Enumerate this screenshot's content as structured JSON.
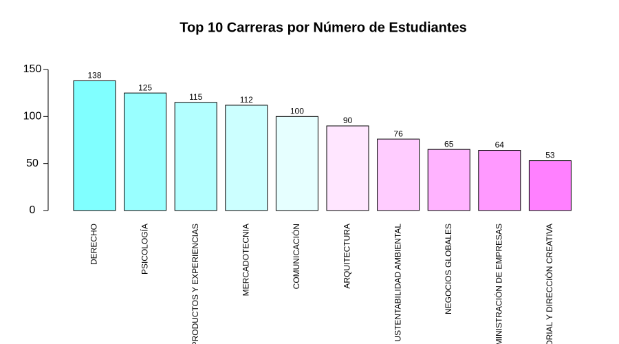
{
  "chart_data": {
    "type": "bar",
    "title": "Top 10 Carreras por Número de Estudiantes",
    "categories": [
      "DERECHO",
      "PSICOLOGÍA",
      "PRODUCTOS Y EXPERIENCIAS",
      "MERCADOTECNIA",
      "COMUNICACIÓN",
      "ARQUITECTURA",
      "USTENTABILIDAD AMBIENTAL",
      "NEGOCIOS GLOBALES",
      "MINISTRACIÓN DE EMPRESAS",
      "ORIAL Y DIRECCIÓN CREATIVA"
    ],
    "values": [
      138,
      125,
      115,
      112,
      100,
      90,
      76,
      65,
      64,
      53
    ],
    "colors": [
      "#80FFFF",
      "#99FFFF",
      "#B3FFFF",
      "#CCFFFF",
      "#E6FFFF",
      "#FFE6FF",
      "#FFCCFF",
      "#FFB3FF",
      "#FF99FF",
      "#FF80FF"
    ],
    "ylim": [
      0,
      150
    ],
    "yticks": [
      0,
      50,
      100,
      150
    ]
  }
}
